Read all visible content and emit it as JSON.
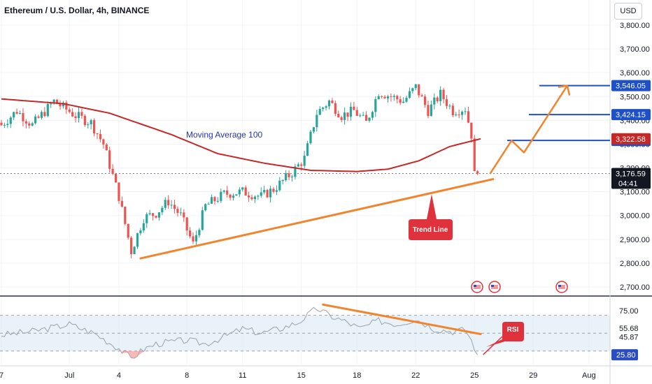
{
  "header": {
    "title": "Ethereum / U.S. Dollar, 4h, BINANCE",
    "currency": "USD"
  },
  "annotations": {
    "moving_average_label": "Moving Average 100",
    "trend_line_label": "Trend Line",
    "rsi_label": "RSI",
    "countdown": "04:41"
  },
  "colors": {
    "up": "#26a69a",
    "down": "#ef5350",
    "ma": "#c62828",
    "trend": "#f0852d",
    "level": "#1e50c8",
    "label_red": "#e0323c",
    "rsi_fill": "#dce9f5",
    "rsi_line": "#9aa0aa"
  },
  "chart_data": [
    {
      "type": "candlestick",
      "x_tick_labels": [
        "7",
        "Jul",
        "4",
        "8",
        "11",
        "15",
        "18",
        "22",
        "25",
        "29",
        "Aug"
      ],
      "y_tick_labels": [
        "3,800.00",
        "3,700.00",
        "3,600.00",
        "3,500.00",
        "3,400.00",
        "3,300.00",
        "3,200.00",
        "3,100.00",
        "3,000.00",
        "2,900.00",
        "2,800.00",
        "2,700.00"
      ],
      "ylim": [
        2670,
        3850
      ],
      "last_price": 3176.59,
      "levels": [
        3546.05,
        3424.15,
        3315.51
      ],
      "ma100_price": 3322.58,
      "ohlc_anchors": [
        {
          "i": 0,
          "close": 3380
        },
        {
          "i": 5,
          "close": 3440
        },
        {
          "i": 10,
          "close": 3380
        },
        {
          "i": 17,
          "close": 3480
        },
        {
          "i": 24,
          "close": 3420
        },
        {
          "i": 29,
          "close": 3390
        },
        {
          "i": 33,
          "close": 3300
        },
        {
          "i": 38,
          "close": 3080
        },
        {
          "i": 42,
          "close": 2850
        },
        {
          "i": 46,
          "close": 2990
        },
        {
          "i": 50,
          "close": 3010
        },
        {
          "i": 54,
          "close": 3060
        },
        {
          "i": 58,
          "close": 3000
        },
        {
          "i": 62,
          "close": 2880
        },
        {
          "i": 66,
          "close": 3040
        },
        {
          "i": 72,
          "close": 3090
        },
        {
          "i": 78,
          "close": 3100
        },
        {
          "i": 84,
          "close": 3080
        },
        {
          "i": 88,
          "close": 3110
        },
        {
          "i": 94,
          "close": 3180
        },
        {
          "i": 98,
          "close": 3240
        },
        {
          "i": 102,
          "close": 3430
        },
        {
          "i": 106,
          "close": 3480
        },
        {
          "i": 110,
          "close": 3420
        },
        {
          "i": 114,
          "close": 3440
        },
        {
          "i": 118,
          "close": 3390
        },
        {
          "i": 122,
          "close": 3520
        },
        {
          "i": 126,
          "close": 3500
        },
        {
          "i": 130,
          "close": 3480
        },
        {
          "i": 134,
          "close": 3540
        },
        {
          "i": 138,
          "close": 3440
        },
        {
          "i": 142,
          "close": 3510
        },
        {
          "i": 146,
          "close": 3440
        },
        {
          "i": 150,
          "close": 3450
        },
        {
          "i": 152,
          "close": 3340
        },
        {
          "i": 153,
          "close": 3170
        },
        {
          "i": 154,
          "close": 3176.59
        }
      ],
      "ma100": [
        {
          "i": 0,
          "v": 3490
        },
        {
          "i": 20,
          "v": 3470
        },
        {
          "i": 35,
          "v": 3430
        },
        {
          "i": 55,
          "v": 3340
        },
        {
          "i": 70,
          "v": 3260
        },
        {
          "i": 85,
          "v": 3220
        },
        {
          "i": 100,
          "v": 3190
        },
        {
          "i": 115,
          "v": 3185
        },
        {
          "i": 125,
          "v": 3195
        },
        {
          "i": 135,
          "v": 3230
        },
        {
          "i": 145,
          "v": 3290
        },
        {
          "i": 155,
          "v": 3322.58
        }
      ],
      "trend_line": [
        {
          "i": 45,
          "v": 2820
        },
        {
          "i": 159,
          "v": 3153
        }
      ],
      "projection": [
        {
          "i": 158,
          "v": 3175
        },
        {
          "i": 165,
          "v": 3315
        },
        {
          "i": 169,
          "v": 3265
        },
        {
          "i": 183,
          "v": 3546
        }
      ]
    },
    {
      "type": "line",
      "name": "RSI",
      "y_tick_labels": [
        "75.00",
        "55.68",
        "45.87",
        "25.80"
      ],
      "ylim": [
        15,
        90
      ],
      "reference_levels": [
        70,
        50,
        30
      ],
      "last_value": 25.8,
      "anchors": [
        {
          "i": 0,
          "v": 48
        },
        {
          "i": 10,
          "v": 52
        },
        {
          "i": 22,
          "v": 60
        },
        {
          "i": 30,
          "v": 50
        },
        {
          "i": 38,
          "v": 33
        },
        {
          "i": 42,
          "v": 22
        },
        {
          "i": 46,
          "v": 32
        },
        {
          "i": 50,
          "v": 38
        },
        {
          "i": 54,
          "v": 40
        },
        {
          "i": 60,
          "v": 42
        },
        {
          "i": 66,
          "v": 38
        },
        {
          "i": 72,
          "v": 46
        },
        {
          "i": 78,
          "v": 55
        },
        {
          "i": 84,
          "v": 50
        },
        {
          "i": 90,
          "v": 55
        },
        {
          "i": 96,
          "v": 62
        },
        {
          "i": 102,
          "v": 78
        },
        {
          "i": 106,
          "v": 70
        },
        {
          "i": 112,
          "v": 62
        },
        {
          "i": 116,
          "v": 55
        },
        {
          "i": 122,
          "v": 64
        },
        {
          "i": 128,
          "v": 60
        },
        {
          "i": 134,
          "v": 66
        },
        {
          "i": 140,
          "v": 55
        },
        {
          "i": 146,
          "v": 52
        },
        {
          "i": 150,
          "v": 54
        },
        {
          "i": 152,
          "v": 42
        },
        {
          "i": 154,
          "v": 25.8
        }
      ],
      "divergence_line": [
        {
          "i": 104,
          "v": 82
        },
        {
          "i": 155,
          "v": 49
        }
      ],
      "rsi_pointer": [
        {
          "i": 154,
          "v": 26
        }
      ]
    }
  ]
}
